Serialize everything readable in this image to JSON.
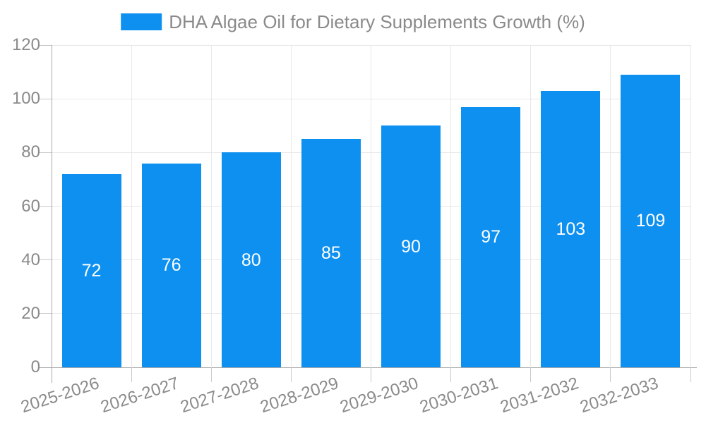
{
  "legend": {
    "label": "DHA Algae Oil for Dietary Supplements Growth (%)"
  },
  "chart_data": {
    "type": "bar",
    "title": "DHA Algae Oil for Dietary Supplements Growth (%)",
    "categories": [
      "2025-2026",
      "2026-2027",
      "2027-2028",
      "2028-2029",
      "2029-2030",
      "2030-2031",
      "2031-2032",
      "2032-2033"
    ],
    "values": [
      72,
      76,
      80,
      85,
      90,
      97,
      103,
      109
    ],
    "xlabel": "",
    "ylabel": "",
    "ylim": [
      0,
      120
    ],
    "ytick_step": 20,
    "yticks": [
      0,
      20,
      40,
      60,
      80,
      100,
      120
    ],
    "grid": true,
    "legend_position": "top-center",
    "value_label_position": "inside-center",
    "x_label_rotation_deg": 18,
    "colors": {
      "bar": "#0e90f0",
      "grid": "#e8e8e8",
      "axis": "#aaaaaa",
      "tick": "#c9c9c9",
      "text": "#8a8a8a",
      "value_text": "#ffffff",
      "background": "#ffffff"
    }
  }
}
